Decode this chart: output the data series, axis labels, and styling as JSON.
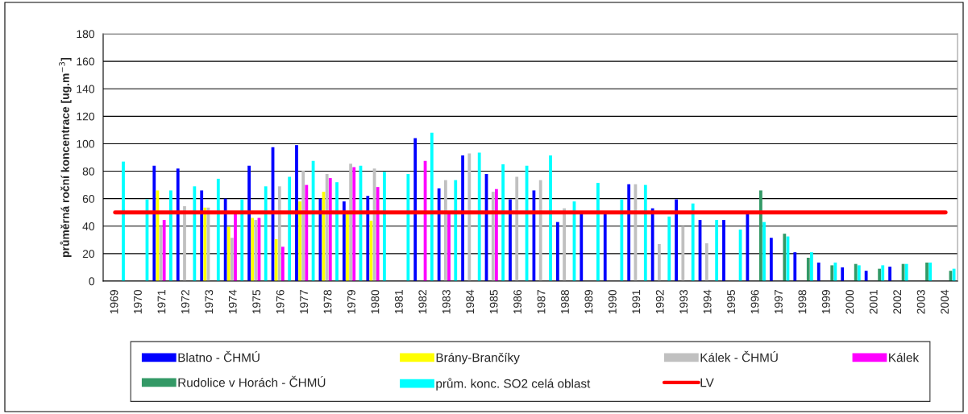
{
  "chart_data": {
    "type": "bar",
    "ylabel": "průměrná roční koncentrace [ug.m$^{−3}$]",
    "categories": [
      "1969",
      "1970",
      "1971",
      "1972",
      "1973",
      "1974",
      "1975",
      "1976",
      "1977",
      "1978",
      "1979",
      "1980",
      "1981",
      "1982",
      "1983",
      "1984",
      "1985",
      "1986",
      "1987",
      "1988",
      "1989",
      "1990",
      "1991",
      "1992",
      "1993",
      "1994",
      "1995",
      "1996",
      "1997",
      "1998",
      "1999",
      "2000",
      "2001",
      "2002",
      "2003",
      "2004"
    ],
    "series": [
      {
        "name": "Blatno - ČHMÚ",
        "color": "#0000ff",
        "values": [
          null,
          null,
          84,
          82,
          66,
          60,
          84,
          97.5,
          99,
          60,
          58,
          62,
          null,
          104,
          67.5,
          91.5,
          78,
          59.5,
          66,
          43,
          50,
          50,
          70.5,
          53,
          59.5,
          44.5,
          44.5,
          50,
          31.5,
          21,
          13.5,
          10,
          7.5,
          10.5,
          null,
          null
        ]
      },
      {
        "name": "Brány-Brančíky",
        "color": "#ffff00",
        "values": [
          null,
          null,
          66,
          null,
          53.5,
          39.5,
          46,
          30.5,
          58,
          65,
          50,
          44,
          null,
          null,
          null,
          null,
          null,
          null,
          null,
          null,
          null,
          null,
          null,
          null,
          null,
          null,
          null,
          null,
          null,
          null,
          null,
          null,
          null,
          null,
          null,
          null
        ]
      },
      {
        "name": "Kálek - ČHMÚ",
        "color": "#c0c0c0",
        "values": [
          null,
          null,
          40,
          54.5,
          53.5,
          31.5,
          44.5,
          69,
          80.5,
          78,
          85.5,
          82,
          null,
          null,
          73.5,
          93,
          65,
          76,
          73.5,
          53,
          null,
          null,
          70.5,
          27,
          40,
          27.5,
          null,
          null,
          null,
          null,
          null,
          null,
          null,
          null,
          null,
          null
        ]
      },
      {
        "name": "Kálek",
        "color": "#ff00ff",
        "values": [
          null,
          null,
          44.5,
          null,
          null,
          50,
          46,
          25,
          70,
          75,
          83,
          68.5,
          null,
          87.5,
          49,
          null,
          67,
          null,
          null,
          null,
          null,
          null,
          null,
          null,
          null,
          null,
          null,
          null,
          null,
          null,
          null,
          null,
          null,
          null,
          null,
          null
        ]
      },
      {
        "name": "Rudolice v Horách - ČHMÚ",
        "color": "#339966",
        "values": [
          null,
          null,
          null,
          null,
          null,
          null,
          null,
          null,
          null,
          null,
          null,
          null,
          null,
          null,
          null,
          null,
          null,
          null,
          null,
          null,
          null,
          null,
          null,
          null,
          null,
          null,
          null,
          66,
          34.5,
          17,
          11.5,
          12.5,
          9,
          12.5,
          13.5,
          7.5
        ]
      },
      {
        "name": "prům. konc. SO2 celá oblast",
        "color": "#00ffff",
        "values": [
          87,
          59.5,
          66,
          69,
          74.5,
          59.5,
          69,
          76,
          87.5,
          72,
          84,
          79.5,
          78,
          108,
          73.5,
          93.5,
          85,
          84,
          91.5,
          58,
          71.5,
          59.5,
          70,
          47,
          56.5,
          44.5,
          37.5,
          43,
          32.5,
          21,
          13.5,
          11.5,
          11.5,
          12.5,
          13.5,
          9
        ]
      },
      {
        "name": "LV",
        "type": "line",
        "color": "#ff0000",
        "values": [
          50,
          50,
          50,
          50,
          50,
          50,
          50,
          50,
          50,
          50,
          50,
          50,
          50,
          50,
          50,
          50,
          50,
          50,
          50,
          50,
          50,
          50,
          50,
          50,
          50,
          50,
          50,
          50,
          50,
          50,
          50,
          50,
          50,
          50,
          50,
          50
        ]
      }
    ],
    "ylim": [
      0,
      180
    ],
    "yticks": [
      0,
      20,
      40,
      60,
      80,
      100,
      120,
      140,
      160,
      180
    ],
    "grid": "y",
    "legend": "bottom"
  }
}
